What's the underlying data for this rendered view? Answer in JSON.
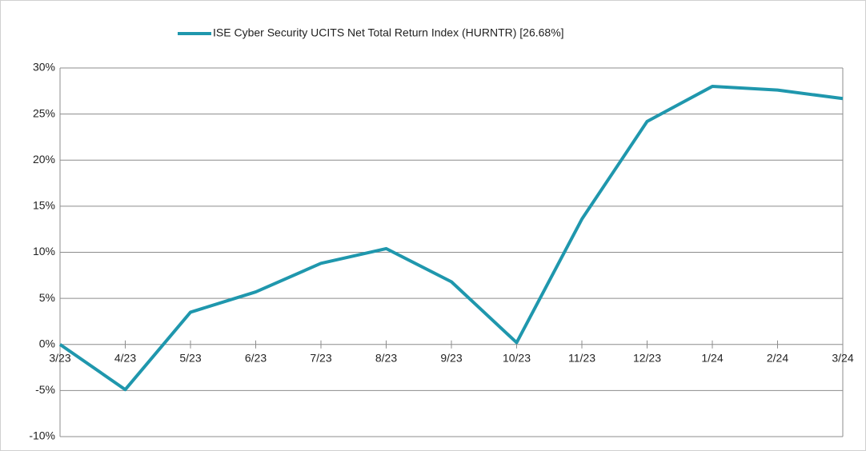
{
  "chart_data": {
    "type": "line",
    "categories": [
      "3/23",
      "4/23",
      "5/23",
      "6/23",
      "7/23",
      "8/23",
      "9/23",
      "10/23",
      "11/23",
      "12/23",
      "1/24",
      "2/24",
      "3/24"
    ],
    "series": [
      {
        "name": "ISE Cyber Security UCITS Net Total Return Index (HURNTR) [26.68%]",
        "color": "#1f97ad",
        "values": [
          0,
          -4.9,
          3.5,
          5.7,
          8.8,
          10.4,
          6.8,
          0.2,
          13.6,
          24.2,
          28.0,
          27.6,
          26.68
        ]
      }
    ],
    "ylim": [
      -10,
      30
    ],
    "yticks": [
      {
        "value": -10,
        "label": "-10%"
      },
      {
        "value": -5,
        "label": "-5%"
      },
      {
        "value": 0,
        "label": "0%"
      },
      {
        "value": 5,
        "label": "5%"
      },
      {
        "value": 10,
        "label": "10%"
      },
      {
        "value": 15,
        "label": "15%"
      },
      {
        "value": 20,
        "label": "20%"
      },
      {
        "value": 25,
        "label": "25%"
      },
      {
        "value": 30,
        "label": "30%"
      }
    ],
    "grid": true,
    "legend": "top"
  }
}
